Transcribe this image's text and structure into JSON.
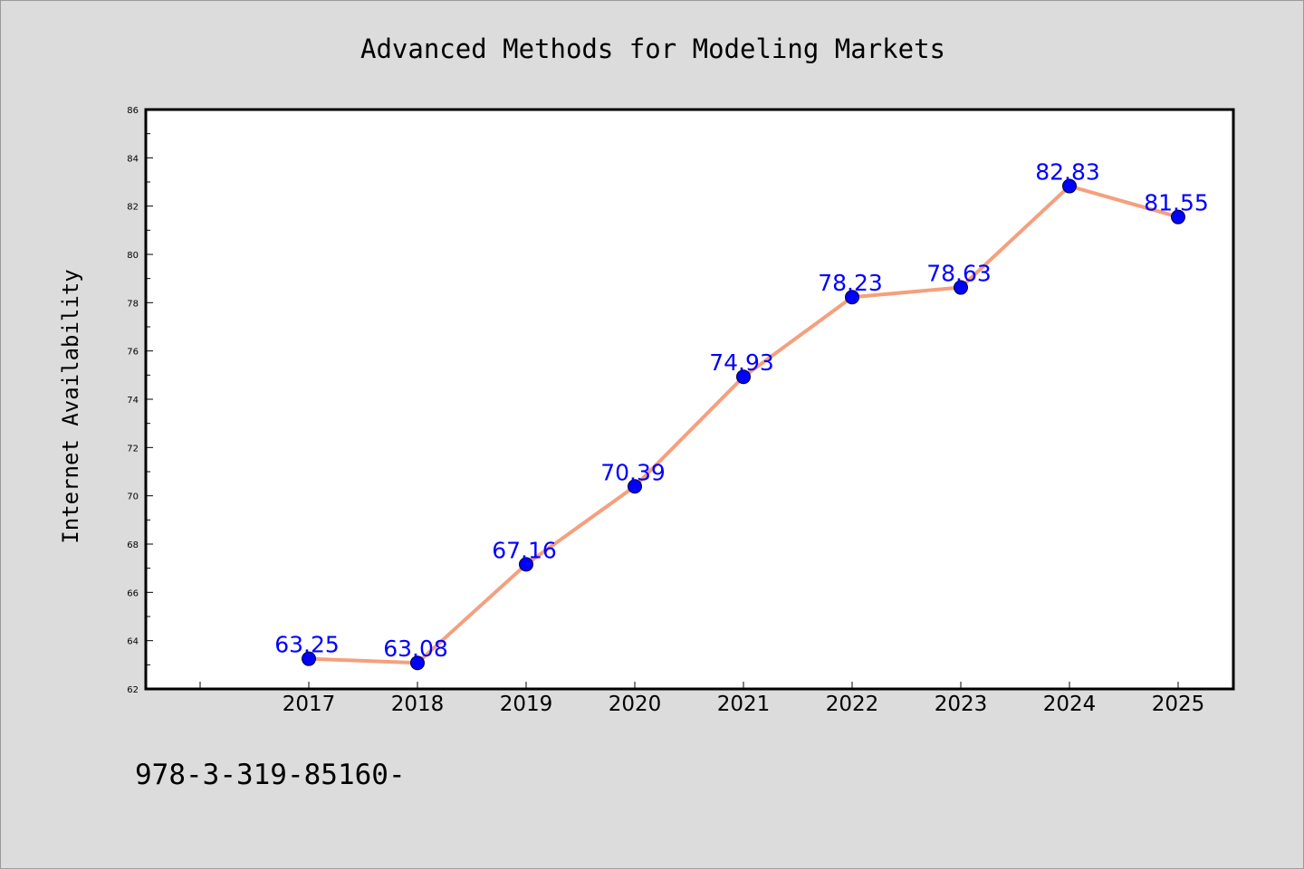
{
  "chart_data": {
    "type": "line",
    "title": "Advanced Methods for Modeling Markets",
    "xlabel": "",
    "ylabel": "Internet Availability",
    "categories": [
      "2017",
      "2018",
      "2019",
      "2020",
      "2021",
      "2022",
      "2023",
      "2024",
      "2025"
    ],
    "series": [
      {
        "values": [
          63.25,
          63.08,
          67.16,
          70.39,
          74.93,
          78.23,
          78.63,
          82.83,
          81.55
        ],
        "data_labels": [
          "63.25",
          "63.08",
          "67.16",
          "70.39",
          "74.93",
          "78.23",
          "78.63",
          "82.83",
          "81.55"
        ],
        "line_color": "#f4a07e",
        "marker_color": "#0000ff"
      }
    ],
    "yticks": [
      "62",
      "64",
      "66",
      "68",
      "70",
      "72",
      "74",
      "76",
      "78",
      "80",
      "82",
      "84",
      "86"
    ],
    "ylim": [
      62,
      86
    ],
    "grid": false,
    "legend": "none"
  },
  "footer": {
    "text": "978-3-319-85160-"
  },
  "colors": {
    "background": "#dcdcdc",
    "plot_background": "#ffffff",
    "line": "#f4a07e",
    "marker": "#0000ff",
    "data_label": "#0000ff"
  }
}
